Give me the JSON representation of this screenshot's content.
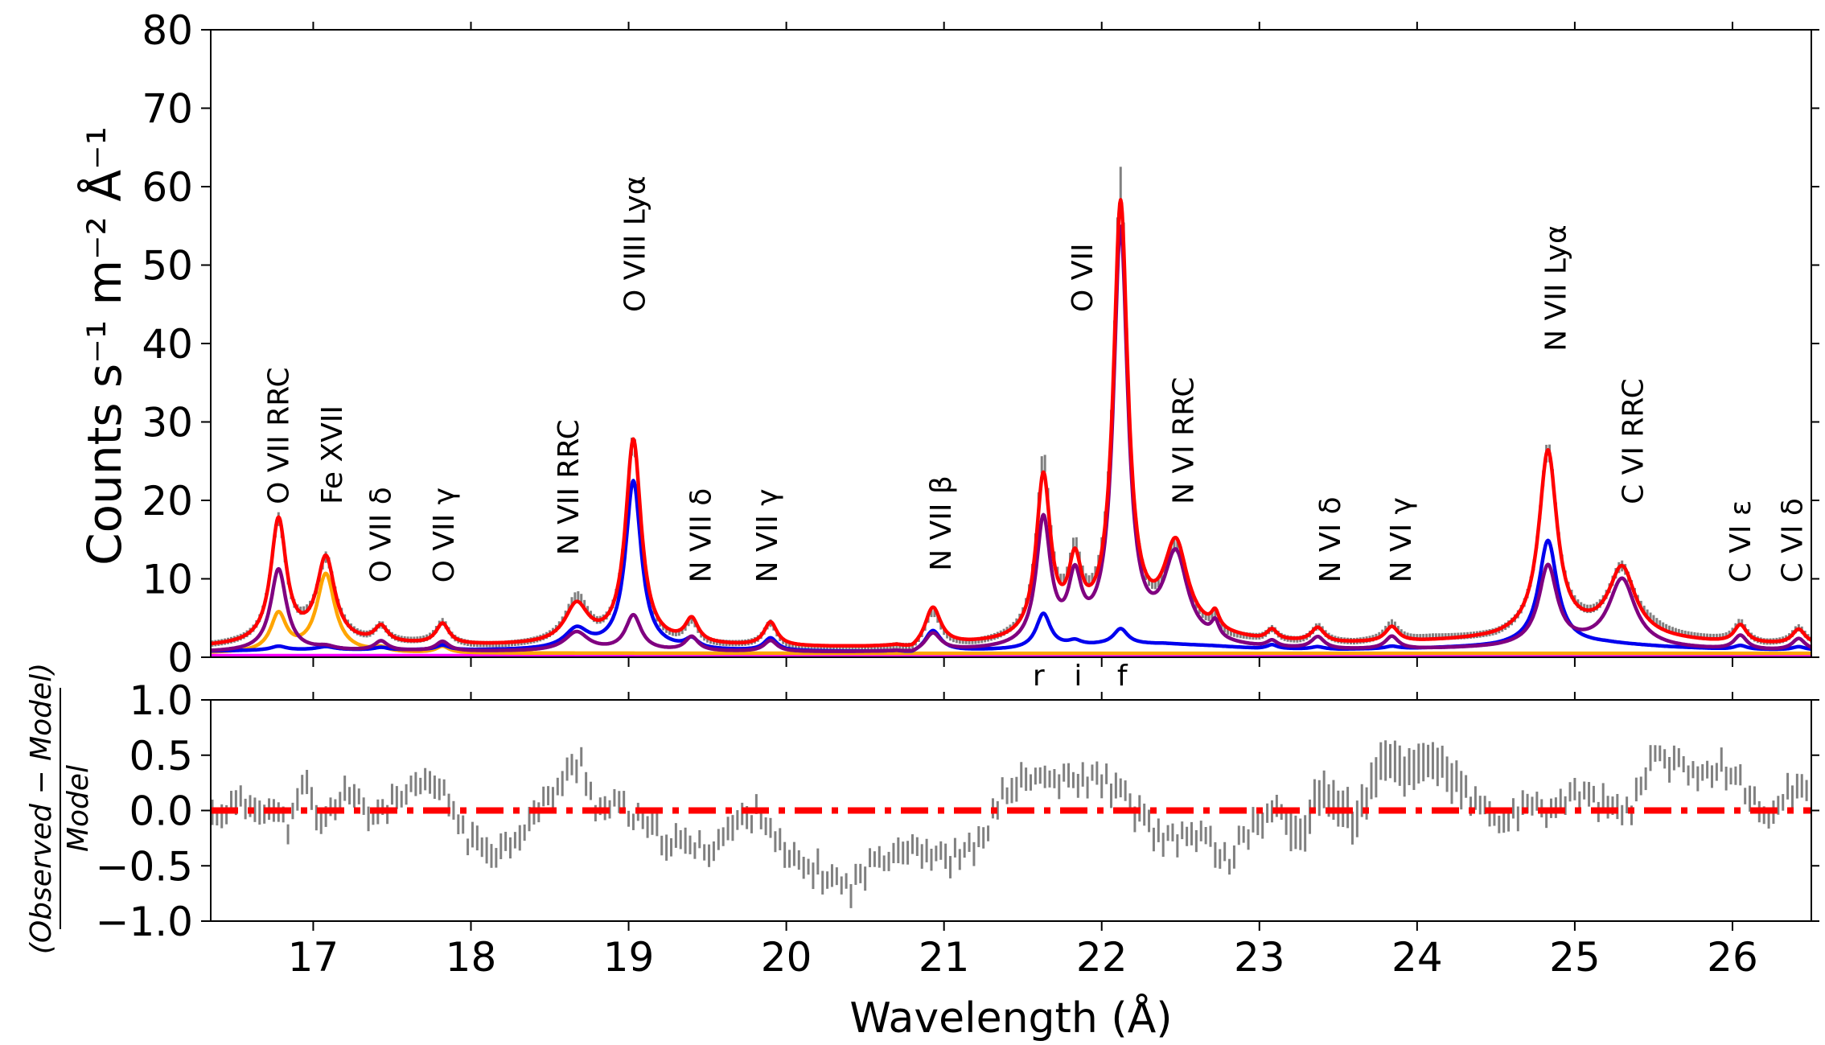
{
  "chart_data": [
    {
      "panel": "spectrum",
      "type": "line",
      "ylabel": "Counts s⁻¹ m⁻² Å⁻¹",
      "xlim": [
        16.35,
        26.5
      ],
      "ylim": [
        0,
        80
      ],
      "yticks": [
        "0",
        "10",
        "20",
        "30",
        "40",
        "50",
        "60",
        "70",
        "80"
      ],
      "ytick_values": [
        0,
        10,
        20,
        30,
        40,
        50,
        60,
        70,
        80
      ],
      "colors": {
        "total": "#ff0000",
        "blue": "#0000ee",
        "purple": "#800080",
        "orange": "#ffa500",
        "magenta": "#ff00ff",
        "data": "#808080"
      },
      "continuum": [
        [
          16.35,
          1.3
        ],
        [
          16.6,
          1.4
        ],
        [
          17.0,
          1.5
        ],
        [
          17.5,
          1.5
        ],
        [
          18.0,
          1.4
        ],
        [
          18.5,
          1.4
        ],
        [
          19.0,
          1.4
        ],
        [
          19.5,
          1.3
        ],
        [
          20.0,
          1.2
        ],
        [
          20.7,
          1.1
        ],
        [
          20.8,
          0.5
        ],
        [
          20.9,
          1.2
        ],
        [
          21.5,
          1.6
        ],
        [
          22.0,
          2.5
        ],
        [
          22.4,
          2.8
        ],
        [
          22.7,
          2.4
        ],
        [
          23.0,
          1.8
        ],
        [
          23.5,
          1.6
        ],
        [
          24.0,
          1.8
        ],
        [
          24.5,
          2.2
        ],
        [
          24.8,
          2.8
        ],
        [
          25.2,
          2.8
        ],
        [
          25.6,
          2.1
        ],
        [
          26.0,
          1.6
        ],
        [
          26.5,
          1.5
        ]
      ],
      "lines": [
        {
          "c": 16.78,
          "w": 0.06,
          "blue": 0.5,
          "purple": 10.5,
          "orange": 4.8
        },
        {
          "c": 17.08,
          "w": 0.07,
          "blue": 0.4,
          "purple": 0.4,
          "orange": 10.0
        },
        {
          "c": 17.43,
          "w": 0.05,
          "blue": 0.3,
          "purple": 1.2,
          "orange": 0.5
        },
        {
          "c": 17.82,
          "w": 0.05,
          "blue": 0.6,
          "purple": 1.2,
          "orange": 0.8
        },
        {
          "c": 18.67,
          "w": 0.09,
          "blue": 2.5,
          "purple": 2.4,
          "orange": 0
        },
        {
          "c": 19.03,
          "w": 0.06,
          "blue": 21.5,
          "purple": 4.5,
          "orange": 0
        },
        {
          "c": 19.4,
          "w": 0.05,
          "blue": 1.2,
          "purple": 1.8,
          "orange": 0
        },
        {
          "c": 19.9,
          "w": 0.05,
          "blue": 1.6,
          "purple": 1.4,
          "orange": 0
        },
        {
          "c": 20.93,
          "w": 0.06,
          "blue": 2.6,
          "purple": 2.2,
          "orange": 0
        },
        {
          "c": 21.63,
          "w": 0.055,
          "blue": 4.4,
          "purple": 16.0,
          "orange": 0
        },
        {
          "c": 21.83,
          "w": 0.05,
          "blue": 0.6,
          "purple": 7.5,
          "orange": 0
        },
        {
          "c": 22.12,
          "w": 0.055,
          "blue": 2.0,
          "purple": 52.5,
          "orange": 0
        },
        {
          "c": 22.47,
          "w": 0.09,
          "blue": 0,
          "purple": 11.0,
          "orange": 0
        },
        {
          "c": 22.72,
          "w": 0.03,
          "blue": 0,
          "purple": 2.0,
          "orange": 0
        },
        {
          "c": 23.08,
          "w": 0.04,
          "blue": 0.5,
          "purple": 0.8,
          "orange": 0
        },
        {
          "c": 23.37,
          "w": 0.05,
          "blue": 0.3,
          "purple": 1.5,
          "orange": 0
        },
        {
          "c": 23.84,
          "w": 0.05,
          "blue": 0.3,
          "purple": 1.6,
          "orange": 0
        },
        {
          "c": 24.83,
          "w": 0.07,
          "blue": 13.2,
          "purple": 10.0,
          "orange": 0
        },
        {
          "c": 25.3,
          "w": 0.1,
          "blue": 0,
          "purple": 8.5,
          "orange": 0
        },
        {
          "c": 26.05,
          "w": 0.05,
          "blue": 0.5,
          "purple": 1.8,
          "orange": 0
        },
        {
          "c": 26.42,
          "w": 0.05,
          "blue": 0.4,
          "purple": 1.5,
          "orange": 0
        }
      ],
      "annotations": [
        {
          "text": "O VII RRC",
          "x": 16.78,
          "y": 19.5
        },
        {
          "text": "Fe XVII",
          "x": 17.12,
          "y": 19.5
        },
        {
          "text": "O VII δ",
          "x": 17.43,
          "y": 9.5
        },
        {
          "text": "O VII γ",
          "x": 17.83,
          "y": 9.5
        },
        {
          "text": "N VII RRC",
          "x": 18.62,
          "y": 13.0
        },
        {
          "text": "O VIII Lyα",
          "x": 19.04,
          "y": 44.0
        },
        {
          "text": "N VII δ",
          "x": 19.46,
          "y": 9.5
        },
        {
          "text": "N VII γ",
          "x": 19.88,
          "y": 9.5
        },
        {
          "text": "N VII β",
          "x": 20.98,
          "y": 11.0
        },
        {
          "text": "O VII",
          "x": 21.88,
          "y": 44.0
        },
        {
          "text": "N VI RRC",
          "x": 22.52,
          "y": 19.5
        },
        {
          "text": "N VI δ",
          "x": 23.45,
          "y": 9.5
        },
        {
          "text": "N VI γ",
          "x": 23.9,
          "y": 9.5
        },
        {
          "text": "N VII Lyα",
          "x": 24.88,
          "y": 39.0
        },
        {
          "text": "C VI RRC",
          "x": 25.37,
          "y": 19.5
        },
        {
          "text": "C VI ε",
          "x": 26.05,
          "y": 9.5
        },
        {
          "text": "C VI δ",
          "x": 26.38,
          "y": 9.5
        }
      ],
      "triplet_labels": [
        {
          "text": "r",
          "x": 21.6
        },
        {
          "text": "i",
          "x": 21.85
        },
        {
          "text": "f",
          "x": 22.13
        }
      ]
    },
    {
      "panel": "residuals",
      "type": "scatter",
      "xlabel": "Wavelength (Å)",
      "ylabel_numerator": "(Observed − Model)",
      "ylabel_denominator": "Model",
      "xlim": [
        16.35,
        26.5
      ],
      "ylim": [
        -1.0,
        1.0
      ],
      "xticks": [
        "17",
        "18",
        "19",
        "20",
        "21",
        "22",
        "23",
        "24",
        "25",
        "26"
      ],
      "xtick_values": [
        17,
        18,
        19,
        20,
        21,
        22,
        23,
        24,
        25,
        26
      ],
      "yticks": [
        "−1.0",
        "−0.5",
        "0.0",
        "0.5",
        "1.0"
      ],
      "ytick_values": [
        -1.0,
        -0.5,
        0.0,
        0.5,
        1.0
      ],
      "reference_line": 0.0,
      "trend": [
        [
          16.35,
          -0.05
        ],
        [
          16.5,
          0.05
        ],
        [
          16.7,
          0.05
        ],
        [
          16.85,
          -0.15
        ],
        [
          16.95,
          0.25
        ],
        [
          17.05,
          -0.15
        ],
        [
          17.2,
          0.2
        ],
        [
          17.35,
          -0.05
        ],
        [
          17.55,
          0.1
        ],
        [
          17.75,
          0.25
        ],
        [
          17.85,
          0.1
        ],
        [
          18.0,
          -0.3
        ],
        [
          18.2,
          -0.35
        ],
        [
          18.4,
          -0.05
        ],
        [
          18.6,
          0.3
        ],
        [
          18.7,
          0.45
        ],
        [
          18.8,
          0.0
        ],
        [
          18.95,
          0.05
        ],
        [
          19.1,
          -0.15
        ],
        [
          19.3,
          -0.3
        ],
        [
          19.5,
          -0.35
        ],
        [
          19.7,
          -0.1
        ],
        [
          19.85,
          0.0
        ],
        [
          20.0,
          -0.45
        ],
        [
          20.2,
          -0.55
        ],
        [
          20.4,
          -0.7
        ],
        [
          20.6,
          -0.4
        ],
        [
          20.8,
          -0.3
        ],
        [
          21.0,
          -0.45
        ],
        [
          21.2,
          -0.35
        ],
        [
          21.4,
          0.2
        ],
        [
          21.6,
          0.3
        ],
        [
          21.8,
          0.25
        ],
        [
          22.0,
          0.3
        ],
        [
          22.15,
          0.1
        ],
        [
          22.4,
          -0.3
        ],
        [
          22.6,
          -0.2
        ],
        [
          22.8,
          -0.45
        ],
        [
          22.95,
          -0.15
        ],
        [
          23.1,
          0.0
        ],
        [
          23.25,
          -0.25
        ],
        [
          23.4,
          0.2
        ],
        [
          23.6,
          -0.1
        ],
        [
          23.8,
          0.45
        ],
        [
          23.95,
          0.35
        ],
        [
          24.1,
          0.5
        ],
        [
          24.3,
          0.15
        ],
        [
          24.5,
          -0.1
        ],
        [
          24.7,
          0.0
        ],
        [
          24.85,
          0.0
        ],
        [
          25.0,
          0.15
        ],
        [
          25.2,
          0.05
        ],
        [
          25.35,
          -0.05
        ],
        [
          25.5,
          0.55
        ],
        [
          25.7,
          0.35
        ],
        [
          25.9,
          0.4
        ],
        [
          26.05,
          0.3
        ],
        [
          26.2,
          -0.1
        ],
        [
          26.35,
          0.2
        ],
        [
          26.5,
          0.15
        ]
      ]
    }
  ]
}
